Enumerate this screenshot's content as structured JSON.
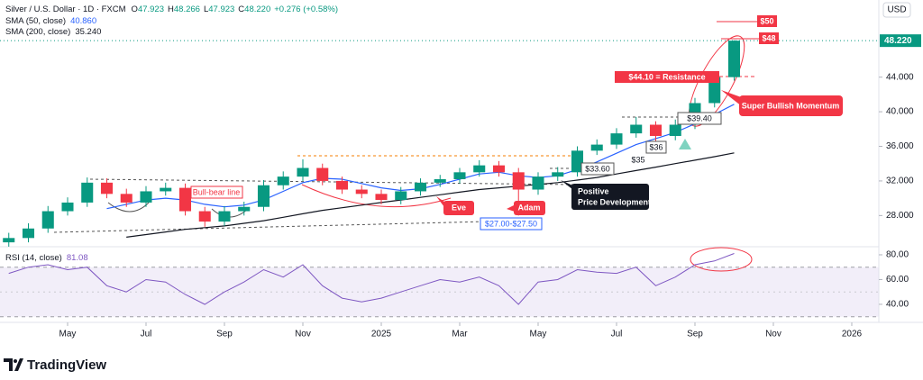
{
  "chart_data": {
    "type": "candlestick",
    "title": "Silver / U.S. Dollar · 1D · FXCM",
    "ohlc_header": [
      [
        "O",
        "47.923"
      ],
      [
        "H",
        "48.266"
      ],
      [
        "L",
        "47.923"
      ],
      [
        "C",
        "48.220"
      ]
    ],
    "change": "+0.276 (+0.58%)",
    "currency": "USD",
    "last_price_label": "48.220",
    "up_color": "#089981",
    "down_color": "#f23645",
    "x": [
      -1.5,
      -1,
      -0.5,
      0,
      0.5,
      1,
      1.5,
      2,
      2.5,
      3,
      3.5,
      4,
      4.5,
      5,
      5.5,
      6,
      6.5,
      7,
      7.5,
      8,
      8.5,
      9,
      9.5,
      10,
      10.5,
      11,
      11.5,
      12,
      12.5,
      13,
      13.5,
      14,
      14.5,
      15,
      15.5,
      16,
      16.5,
      17
    ],
    "open": [
      24.9,
      25.4,
      26.5,
      28.5,
      29.5,
      31.8,
      30.5,
      29.5,
      30.8,
      31.2,
      28.5,
      27.3,
      28.5,
      29.0,
      31.5,
      32.5,
      33.5,
      32.0,
      31.0,
      30.5,
      29.8,
      30.8,
      31.8,
      32.2,
      33.0,
      33.8,
      33.0,
      31.0,
      32.5,
      33.0,
      35.5,
      36.2,
      37.5,
      38.5,
      37.2,
      38.5,
      41.0,
      44.0
    ],
    "high": [
      26.0,
      27.1,
      29.1,
      30.1,
      32.4,
      32.3,
      31.1,
      31.4,
      31.8,
      31.7,
      29.0,
      29.1,
      29.6,
      32.1,
      33.1,
      34.5,
      34.0,
      32.5,
      31.5,
      31.0,
      31.3,
      32.3,
      32.7,
      33.5,
      34.4,
      34.3,
      33.5,
      33.0,
      33.6,
      36.0,
      36.8,
      38.1,
      39.4,
      38.9,
      39.1,
      41.6,
      44.6,
      48.266
    ],
    "low": [
      24.4,
      24.9,
      26.0,
      28.0,
      29.0,
      30.0,
      29.0,
      29.0,
      30.3,
      28.0,
      26.7,
      26.8,
      28.0,
      28.5,
      31.0,
      32.0,
      31.5,
      30.5,
      30.0,
      29.3,
      29.3,
      30.3,
      31.3,
      31.7,
      32.5,
      32.5,
      28.0,
      30.4,
      32.0,
      32.5,
      35.0,
      35.7,
      37.0,
      36.6,
      36.7,
      38.0,
      40.5,
      43.6
    ],
    "close": [
      25.4,
      26.5,
      28.5,
      29.5,
      31.8,
      30.5,
      29.5,
      30.8,
      31.2,
      28.5,
      27.3,
      28.5,
      29.0,
      31.5,
      32.5,
      33.5,
      32.0,
      31.0,
      30.5,
      29.8,
      30.8,
      31.8,
      32.2,
      33.0,
      33.8,
      33.0,
      31.0,
      32.5,
      33.0,
      35.5,
      36.2,
      37.5,
      38.5,
      37.2,
      38.5,
      41.0,
      44.0,
      48.22
    ],
    "series": [
      {
        "name": "SMA (50, close)",
        "color": "#2962ff",
        "last_value_label": "40.860",
        "values": [
          null,
          null,
          null,
          null,
          null,
          28.8,
          29.3,
          29.8,
          30.0,
          29.8,
          29.3,
          29.0,
          29.2,
          29.8,
          30.8,
          31.8,
          32.3,
          32.2,
          31.7,
          31.2,
          30.9,
          31.1,
          31.6,
          32.2,
          32.8,
          33.0,
          32.6,
          32.4,
          32.6,
          33.3,
          34.2,
          35.2,
          36.2,
          36.9,
          37.6,
          38.6,
          39.7,
          40.86
        ]
      },
      {
        "name": "SMA (200, close)",
        "color": "#131722",
        "last_value_label": "35.240",
        "values": [
          null,
          null,
          null,
          null,
          null,
          null,
          25.5,
          25.8,
          26.1,
          26.4,
          26.6,
          26.8,
          27.1,
          27.4,
          27.8,
          28.2,
          28.6,
          28.9,
          29.2,
          29.5,
          29.8,
          30.1,
          30.4,
          30.7,
          31.0,
          31.2,
          31.4,
          31.6,
          31.8,
          32.1,
          32.4,
          32.8,
          33.2,
          33.6,
          34.0,
          34.4,
          34.8,
          35.24
        ]
      }
    ],
    "xlim": [
      -1.724,
      20.69
    ],
    "xticks": [
      {
        "value": 0,
        "label": "May"
      },
      {
        "value": 2,
        "label": "Jul"
      },
      {
        "value": 4,
        "label": "Sep"
      },
      {
        "value": 6,
        "label": "Nov"
      },
      {
        "value": 8,
        "label": "2025"
      },
      {
        "value": 10,
        "label": "Mar"
      },
      {
        "value": 12,
        "label": "May"
      },
      {
        "value": 14,
        "label": "Jul"
      },
      {
        "value": 16,
        "label": "Sep"
      },
      {
        "value": 18,
        "label": "Nov"
      },
      {
        "value": 20,
        "label": "2026"
      }
    ],
    "ylim": [
      24.6,
      52.4
    ],
    "yticks": [
      {
        "value": 28,
        "label": "28.000"
      },
      {
        "value": 32,
        "label": "32.000"
      },
      {
        "value": 36,
        "label": "36.000"
      },
      {
        "value": 40,
        "label": "40.000"
      },
      {
        "value": 44,
        "label": "44.000"
      }
    ],
    "rsi": {
      "name": "RSI (14, close)",
      "last_value_label": "81.08",
      "color": "#7e57c2",
      "values": [
        65,
        70,
        72,
        68,
        70,
        55,
        50,
        60,
        58,
        48,
        40,
        50,
        58,
        68,
        62,
        72,
        55,
        45,
        42,
        45,
        50,
        55,
        60,
        58,
        62,
        55,
        40,
        58,
        60,
        68,
        66,
        65,
        70,
        55,
        62,
        72,
        75,
        81.08
      ],
      "ylim": [
        27.6,
        85.8
      ],
      "yticks": [
        {
          "value": 40,
          "label": "40.00"
        },
        {
          "value": 60,
          "label": "60.00"
        },
        {
          "value": 80,
          "label": "80.00"
        }
      ],
      "band": [
        30,
        70
      ]
    },
    "annotations": [
      "$50",
      "$48",
      "$44.10 = Resistance",
      "Super Bullish Momentum",
      "$39.40",
      "$36",
      "$35",
      "$33.60",
      "Bull-bear line",
      "Eve",
      "Adam",
      "$27.00-$27.50",
      "Positive",
      "Price Development"
    ],
    "brand": "TradingView"
  }
}
